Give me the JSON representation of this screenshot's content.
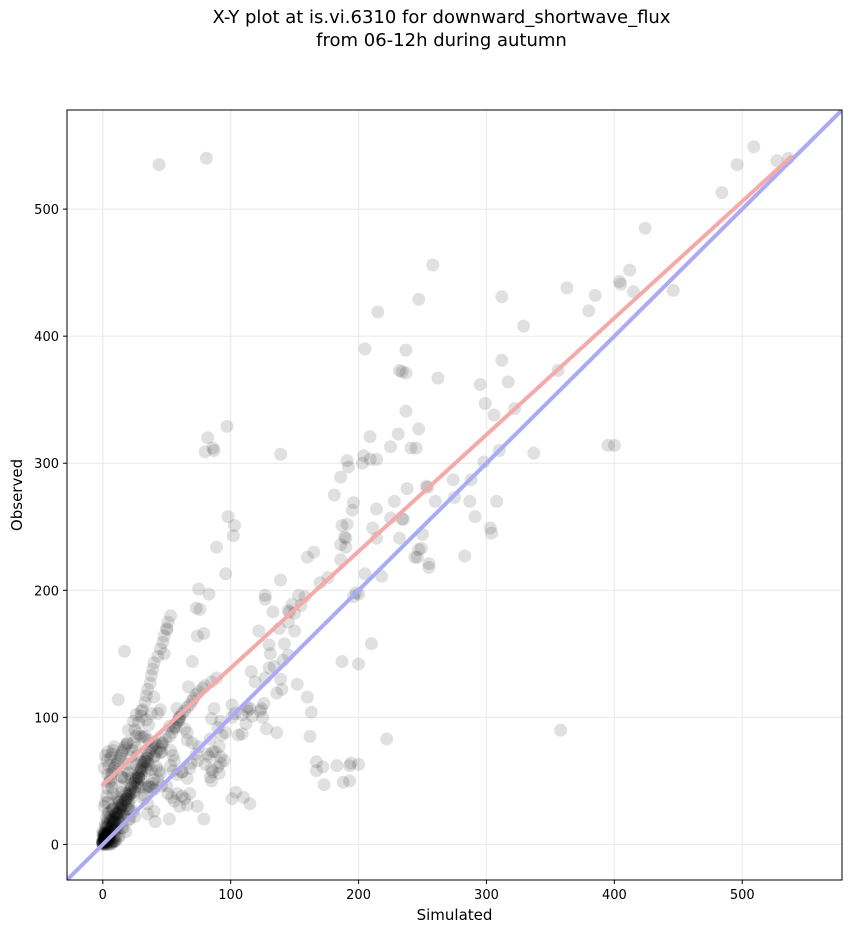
{
  "chart_data": {
    "type": "scatter",
    "title_line1": "X-Y plot at is.vi.6310 for downward_shortwave_flux",
    "title_line2": "from 06-12h during autumn",
    "xlabel": "Simulated",
    "ylabel": "Observed",
    "xlim": [
      -28,
      578
    ],
    "ylim": [
      -28,
      578
    ],
    "xticks": [
      0,
      100,
      200,
      300,
      400,
      500
    ],
    "yticks": [
      0,
      100,
      200,
      300,
      400,
      500
    ],
    "grid": true,
    "colors": {
      "points": "#000000",
      "identity_line": "#aaaaf5",
      "fit_line": "#f5aaaa",
      "grid": "#ebebeb"
    },
    "identity_line": {
      "x": [
        -28,
        578
      ],
      "y": [
        -28,
        578
      ]
    },
    "fit_line": {
      "x": [
        0,
        538
      ],
      "y": [
        47,
        541
      ]
    },
    "series": [
      {
        "x": [
          44,
          81,
          509,
          496,
          527,
          536,
          484,
          424,
          412,
          404,
          405,
          415,
          446,
          385,
          363,
          380,
          356,
          395,
          312,
          329,
          312,
          317,
          299,
          295,
          258,
          241,
          237,
          247,
          192,
          215,
          205,
          232,
          234,
          237,
          203,
          209,
          191,
          186,
          181,
          225,
          247,
          231,
          209,
          214,
          245,
          253,
          262,
          237,
          275,
          298,
          288,
          310,
          283,
          306,
          337,
          308,
          322,
          303,
          304,
          287,
          291,
          274,
          254,
          238,
          260,
          232,
          247,
          244,
          234,
          246,
          228,
          225,
          235,
          249,
          250,
          255,
          211,
          196,
          195,
          187,
          170,
          176,
          196,
          160,
          191,
          190,
          165,
          186,
          214,
          218,
          205,
          198,
          200,
          158,
          148,
          145,
          146,
          145,
          138,
          141,
          142,
          127,
          152,
          160,
          113,
          103,
          112,
          128,
          130,
          136,
          150,
          131,
          133,
          145,
          109,
          106,
          96,
          90,
          117,
          140,
          163,
          167,
          183,
          188,
          167,
          172,
          194,
          193,
          200,
          222,
          173,
          187,
          155,
          139,
          136,
          162,
          150,
          139,
          127,
          122,
          130,
          127,
          103,
          102,
          97,
          139,
          96,
          82,
          87,
          80,
          86,
          89,
          98,
          76,
          83,
          75,
          73,
          79,
          74,
          70,
          67,
          58,
          60,
          52,
          48,
          50,
          45,
          40,
          38,
          34,
          36,
          32,
          36,
          30,
          26,
          26,
          28,
          24,
          17,
          12,
          20,
          43,
          60,
          87,
          101,
          92,
          109,
          124,
          126,
          119,
          125,
          123,
          101,
          90,
          95,
          85,
          91,
          84,
          88,
          83,
          86,
          93,
          64,
          66,
          57,
          74,
          62,
          58,
          55,
          62,
          41,
          70,
          82,
          68,
          58,
          69,
          53,
          47,
          66,
          53,
          46,
          40,
          30,
          42,
          28,
          46,
          30,
          45,
          26,
          28,
          19,
          36,
          30,
          39,
          50,
          35,
          44,
          35,
          38,
          20,
          29,
          27,
          33,
          55,
          56,
          80,
          75,
          91,
          92,
          92,
          73,
          66,
          85,
          86,
          84,
          45,
          38,
          40,
          36,
          32,
          43,
          34,
          51,
          40,
          25,
          12,
          15,
          22,
          30,
          32,
          21,
          22,
          18,
          12,
          15,
          22,
          7,
          18,
          8,
          4,
          11,
          24,
          28,
          20,
          20,
          41,
          35,
          52,
          56,
          74,
          68,
          79,
          62,
          54,
          101,
          115,
          110,
          104,
          64,
          66,
          60,
          40,
          35,
          25,
          10,
          2,
          2,
          3,
          5,
          8,
          9,
          12,
          13,
          15,
          18,
          16,
          14,
          20,
          12,
          3,
          2,
          1,
          7,
          6,
          4,
          4,
          8,
          9,
          10,
          11,
          17,
          20,
          21,
          3,
          5,
          6,
          5,
          8,
          9,
          12,
          13,
          14,
          15,
          14,
          10,
          6,
          2,
          4,
          5,
          10,
          12,
          13,
          9,
          9,
          3,
          5,
          4,
          8,
          15,
          16,
          18,
          20,
          19,
          21,
          22,
          24,
          25,
          27,
          26,
          28,
          30,
          30,
          34,
          36,
          33,
          35,
          41,
          42,
          44,
          46,
          46,
          49,
          52,
          54,
          55,
          56,
          58,
          59,
          60,
          62,
          64,
          66,
          68,
          70,
          71,
          73,
          75,
          78,
          80,
          85,
          89,
          10,
          12,
          13,
          15,
          14,
          17,
          19,
          20,
          22,
          23,
          24,
          26,
          25,
          28,
          30,
          31,
          33,
          34,
          35,
          37,
          38,
          39,
          40,
          43,
          45,
          47,
          48,
          50,
          51,
          53,
          8,
          7,
          6,
          4,
          2,
          3,
          5,
          6,
          7,
          8,
          9,
          11,
          1,
          1,
          2,
          2,
          3,
          3,
          4,
          4,
          5,
          5,
          6,
          6,
          7,
          7,
          8,
          8,
          9,
          9,
          10,
          11,
          12,
          13,
          14,
          15,
          16,
          17,
          18,
          19,
          1,
          2,
          3,
          4,
          5,
          6,
          7,
          8,
          9,
          10,
          11,
          12,
          13,
          14,
          15,
          16,
          17,
          18,
          19,
          20,
          21,
          22,
          23,
          24,
          25,
          26,
          27,
          28,
          29,
          30,
          31,
          32,
          33,
          34,
          35,
          36,
          37,
          38,
          39,
          40,
          0,
          0,
          1,
          0,
          1,
          2,
          1,
          0,
          2,
          1,
          3,
          2,
          0,
          4,
          1,
          3,
          2,
          5,
          4,
          3,
          2,
          6,
          1,
          3,
          4,
          5,
          7,
          2,
          0,
          1,
          3,
          5,
          6,
          8,
          4,
          2,
          7,
          3,
          6,
          9,
          1,
          2,
          3,
          0,
          1,
          2,
          0,
          1,
          0,
          2,
          1,
          0,
          3,
          2,
          1,
          0,
          4,
          3,
          2,
          1,
          5,
          0,
          358,
          193,
          400,
          200,
          190,
          204,
          255,
          214,
          186,
          153,
          134,
          116,
          210,
          189,
          113,
          115,
          85
        ],
        "y": [
          535,
          540,
          549,
          535,
          538,
          540,
          513,
          485,
          452,
          443,
          441,
          435,
          436,
          432,
          438,
          420,
          373,
          314,
          431,
          408,
          381,
          364,
          347,
          362,
          456,
          312,
          389,
          327,
          297,
          419,
          390,
          373,
          372,
          371,
          300,
          303,
          302,
          289,
          275,
          313,
          429,
          323,
          321,
          303,
          312,
          282,
          367,
          341,
          273,
          301,
          287,
          310,
          227,
          338,
          308,
          270,
          343,
          249,
          245,
          270,
          258,
          287,
          281,
          280,
          270,
          241,
          232,
          226,
          256,
          226,
          270,
          257,
          256,
          233,
          244,
          221,
          249,
          269,
          263,
          251,
          206,
          210,
          195,
          226,
          252,
          241,
          230,
          236,
          241,
          211,
          213,
          198,
          197,
          195,
          189,
          184,
          183,
          175,
          170,
          145,
          158,
          131,
          126,
          116,
          105,
          103,
          95,
          91,
          139,
          88,
          182,
          150,
          183,
          149,
          87,
          86,
          88,
          92,
          101,
          122,
          104,
          65,
          62,
          49,
          58,
          61,
          64,
          62,
          63,
          83,
          47,
          144,
          188,
          130,
          119,
          85,
          168,
          208,
          196,
          168,
          157,
          193,
          251,
          243,
          329,
          307,
          213,
          320,
          310,
          309,
          312,
          234,
          258,
          185,
          197,
          201,
          186,
          166,
          164,
          144,
          124,
          107,
          100,
          93,
          150,
          169,
          106,
          116,
          103,
          98,
          94,
          84,
          82,
          105,
          102,
          76,
          87,
          97,
          152,
          114,
          90,
          103,
          98,
          107,
          100,
          97,
          102,
          107,
          111,
          128,
          100,
          105,
          110,
          61,
          66,
          59,
          77,
          83,
          73,
          69,
          73,
          86,
          91,
          88,
          92,
          66,
          57,
          55,
          58,
          57,
          79,
          80,
          71,
          60,
          40,
          64,
          62,
          80,
          82,
          74,
          73,
          69,
          65,
          61,
          52,
          46,
          51,
          56,
          63,
          53,
          79,
          45,
          85,
          48,
          46,
          58,
          58,
          65,
          59,
          56,
          60,
          70,
          85,
          70,
          66,
          63,
          77,
          56,
          64,
          69,
          71,
          52,
          50,
          57,
          53,
          72,
          45,
          51,
          46,
          36,
          51,
          45,
          40,
          43,
          41,
          33,
          53,
          52,
          45,
          39,
          27,
          47,
          35,
          36,
          53,
          36,
          27,
          40,
          21,
          33,
          37,
          26,
          45,
          38,
          28,
          18,
          24,
          20,
          34,
          30,
          40,
          20,
          38,
          37,
          36,
          32,
          37,
          41,
          36,
          31,
          30,
          26,
          32,
          22,
          25,
          14,
          4,
          8,
          12,
          28,
          19,
          21,
          17,
          13,
          10,
          13,
          28,
          31,
          29,
          21,
          9,
          7,
          12,
          18,
          24,
          16,
          19,
          10,
          6,
          15,
          22,
          19,
          20,
          13,
          10,
          22,
          7,
          11,
          6,
          12,
          18,
          23,
          25,
          31,
          24,
          19,
          16,
          14,
          9,
          3,
          5,
          7,
          3,
          17,
          14,
          25,
          19,
          28,
          31,
          27,
          30,
          34,
          36,
          39,
          40,
          42,
          45,
          48,
          51,
          53,
          55,
          58,
          60,
          63,
          65,
          68,
          70,
          73,
          75,
          78,
          80,
          83,
          85,
          88,
          91,
          93,
          96,
          98,
          100,
          103,
          105,
          108,
          110,
          113,
          115,
          118,
          120,
          123,
          125,
          128,
          131,
          12,
          25,
          34,
          41,
          46,
          52,
          58,
          63,
          69,
          74,
          80,
          85,
          90,
          96,
          101,
          106,
          112,
          117,
          122,
          127,
          133,
          138,
          143,
          148,
          154,
          159,
          164,
          170,
          175,
          180,
          40,
          45,
          50,
          55,
          3,
          6,
          9,
          12,
          15,
          18,
          21,
          24,
          30,
          60,
          33,
          70,
          38,
          66,
          44,
          73,
          49,
          62,
          52,
          68,
          56,
          71,
          58,
          74,
          60,
          77,
          62,
          64,
          66,
          68,
          70,
          72,
          74,
          76,
          78,
          80,
          2,
          4,
          6,
          8,
          10,
          12,
          14,
          16,
          18,
          20,
          22,
          24,
          26,
          28,
          30,
          32,
          34,
          36,
          38,
          40,
          42,
          44,
          46,
          48,
          50,
          52,
          54,
          56,
          58,
          60,
          62,
          64,
          66,
          68,
          70,
          72,
          74,
          76,
          78,
          80,
          0,
          1,
          0,
          2,
          1,
          0,
          3,
          2,
          1,
          4,
          0,
          3,
          2,
          1,
          5,
          2,
          4,
          0,
          3,
          6,
          1,
          2,
          7,
          5,
          3,
          4,
          2,
          8,
          1,
          6,
          3,
          5,
          0,
          2,
          7,
          4,
          1,
          9,
          3,
          2,
          5,
          8,
          3,
          4,
          7,
          6,
          2,
          9,
          1,
          5,
          3,
          8,
          4,
          6,
          2,
          10,
          5,
          7,
          3,
          9,
          6,
          1,
          90,
          50,
          314,
          142,
          234,
          306,
          218,
          264,
          224,
          196,
          140,
          136,
          158,
          242,
          108,
          107,
          99
        ]
      }
    ]
  }
}
